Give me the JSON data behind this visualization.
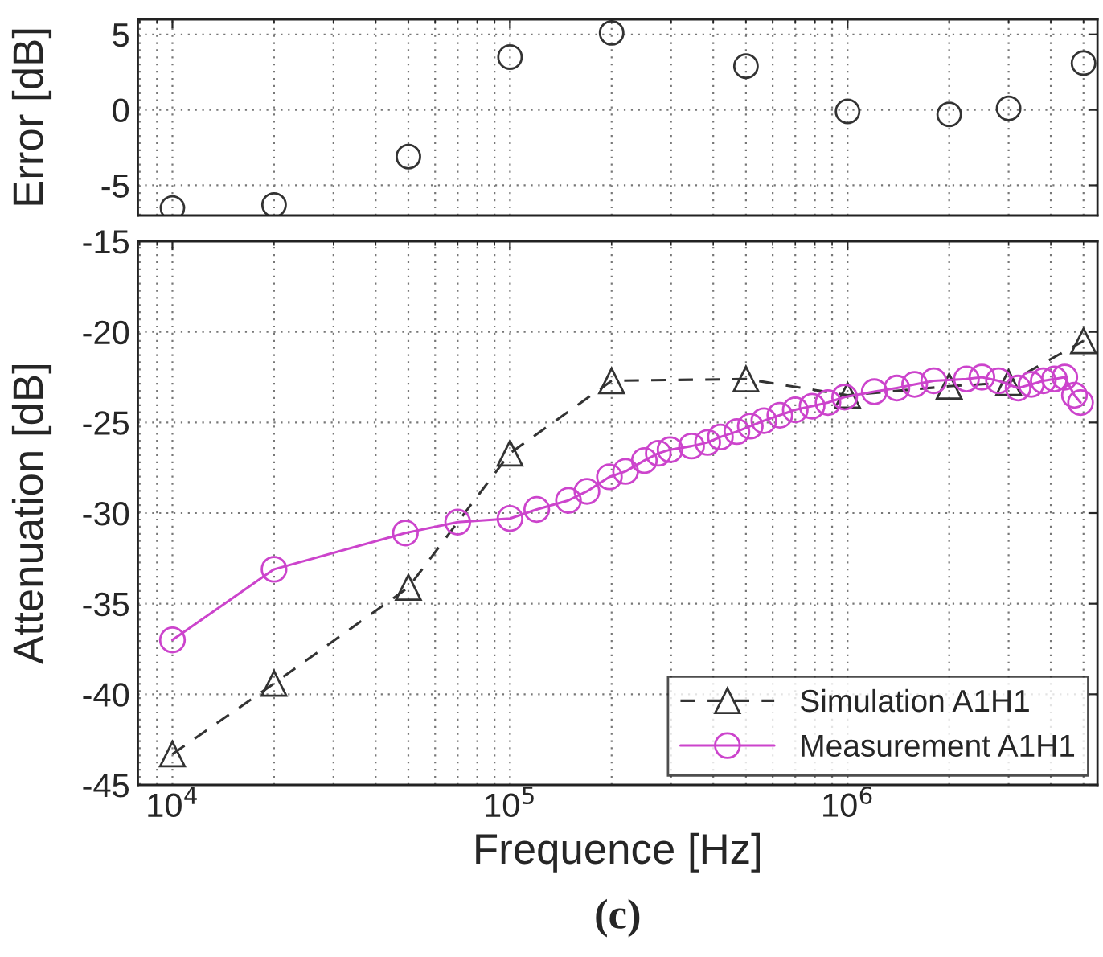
{
  "chart_data": [
    {
      "type": "scatter",
      "ylabel": "Error [dB]",
      "log": "x",
      "grid": true,
      "marker": "circle",
      "tick_labels": "y",
      "xlim": [
        7900,
        5500000
      ],
      "xticks": [
        {
          "value": 10000,
          "label": null
        },
        {
          "value": 100000,
          "label": null
        },
        {
          "value": 1000000,
          "label": null
        }
      ],
      "ylim": [
        -7,
        6
      ],
      "yticks": [
        -5,
        0,
        5
      ],
      "series": [
        {
          "color": "#333333",
          "x": [
            10000,
            20000,
            50000,
            100000,
            200000,
            500000,
            1000000,
            2000000,
            3000000,
            5000000
          ],
          "values": [
            -6.5,
            -6.3,
            -3.1,
            3.5,
            5.1,
            2.9,
            -0.1,
            -0.3,
            0.1,
            3.1
          ]
        }
      ]
    },
    {
      "type": "line",
      "xlabel": "Frequence [Hz]",
      "ylabel": "Attenuation [dB]",
      "log": "x",
      "grid": true,
      "legend": "bottom right",
      "annotations": [
        "(c)"
      ],
      "xlim": [
        7900,
        5500000
      ],
      "xticks": [
        {
          "value": 10000,
          "label": "10$^{4}$"
        },
        {
          "value": 100000,
          "label": "10$^{5}$"
        },
        {
          "value": 1000000,
          "label": "10$^{6}$"
        }
      ],
      "ylim": [
        -45,
        -15
      ],
      "yticks": [
        -45,
        -40,
        -35,
        -30,
        -25,
        -20,
        -15
      ],
      "series": [
        {
          "name": "Simulation A1H1",
          "color": "#333333",
          "marker": "triangle",
          "line_style": "dashed",
          "x": [
            10000,
            20000,
            50000,
            100000,
            200000,
            500000,
            1000000,
            2000000,
            3000000,
            5000000
          ],
          "values": [
            -43.3,
            -39.4,
            -34.1,
            -26.7,
            -22.7,
            -22.6,
            -23.5,
            -23.0,
            -22.8,
            -20.5
          ]
        },
        {
          "name": "Measurement A1H1",
          "color": "#cc44cc",
          "marker": "circle",
          "line_style": "solid",
          "x": [
            10000,
            20000,
            49000,
            70000,
            100000,
            120000,
            149000,
            169000,
            197000,
            220000,
            250000,
            275000,
            298000,
            345000,
            385000,
            420000,
            470000,
            515000,
            565000,
            630000,
            700000,
            785000,
            875000,
            980000,
            1200000,
            1400000,
            1580000,
            1800000,
            2250000,
            2500000,
            2800000,
            3200000,
            3500000,
            3800000,
            4100000,
            4400000,
            4700000,
            4900000
          ],
          "values": [
            -37.0,
            -33.1,
            -31.1,
            -30.5,
            -30.3,
            -29.8,
            -29.3,
            -28.8,
            -28.0,
            -27.7,
            -27.1,
            -26.7,
            -26.5,
            -26.3,
            -26.1,
            -25.8,
            -25.5,
            -25.2,
            -24.9,
            -24.6,
            -24.3,
            -24.1,
            -23.9,
            -23.6,
            -23.3,
            -23.1,
            -22.9,
            -22.7,
            -22.6,
            -22.5,
            -22.7,
            -23.1,
            -22.9,
            -22.7,
            -22.6,
            -22.5,
            -23.5,
            -23.9
          ]
        }
      ]
    }
  ]
}
